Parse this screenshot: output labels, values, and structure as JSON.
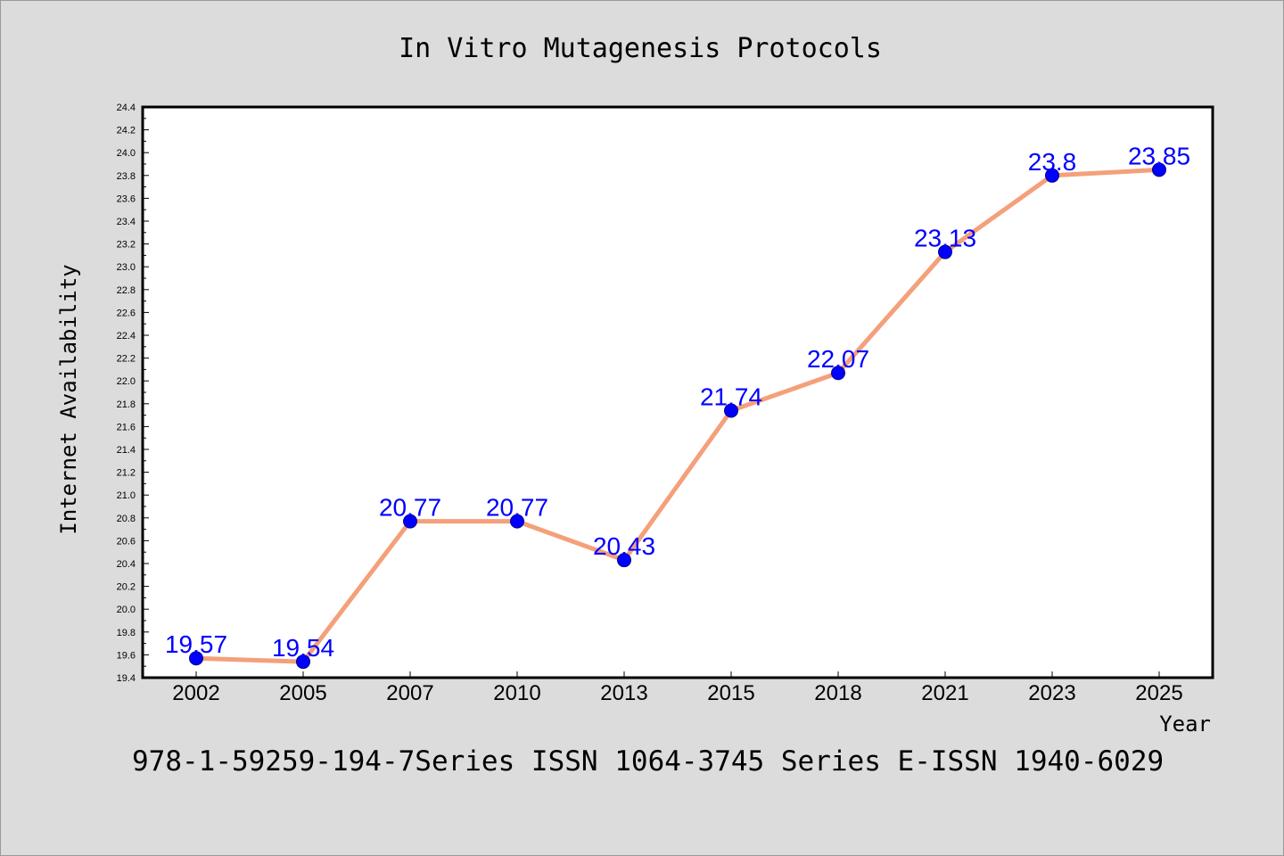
{
  "chart_data": {
    "type": "line",
    "title": "In Vitro Mutagenesis Protocols",
    "xlabel": "Year",
    "ylabel": "Internet Availability",
    "categories": [
      "2002",
      "2005",
      "2007",
      "2010",
      "2013",
      "2015",
      "2018",
      "2021",
      "2023",
      "2025"
    ],
    "series": [
      {
        "values": [
          19.57,
          19.54,
          20.77,
          20.77,
          20.43,
          21.74,
          22.07,
          23.13,
          23.8,
          23.85
        ],
        "data_labels": [
          "19.57",
          "19.54",
          "20.77",
          "20.77",
          "20.43",
          "21.74",
          "22.07",
          "23.13",
          "23.8",
          "23.85"
        ],
        "line_color": "#f4a07a",
        "marker_color": "#0000ff"
      }
    ],
    "ylim": [
      19.4,
      24.4
    ],
    "yticks": [
      "19.4",
      "19.6",
      "19.8",
      "20.0",
      "20.2",
      "20.4",
      "20.6",
      "20.8",
      "21.0",
      "21.2",
      "21.4",
      "21.6",
      "21.8",
      "22.0",
      "22.2",
      "22.4",
      "22.6",
      "22.8",
      "23.0",
      "23.2",
      "23.4",
      "23.6",
      "23.8",
      "24.0",
      "24.2",
      "24.4"
    ],
    "grid": false,
    "legend": "none"
  },
  "footer": {
    "text": "978-1-59259-194-7Series ISSN 1064-3745 Series E-ISSN 1940-6029"
  },
  "colors": {
    "background": "#dcdcdc",
    "plot_area": "#ffffff",
    "line": "#f4a07a",
    "marker": "#0000ff",
    "data_label": "#0000ff"
  }
}
